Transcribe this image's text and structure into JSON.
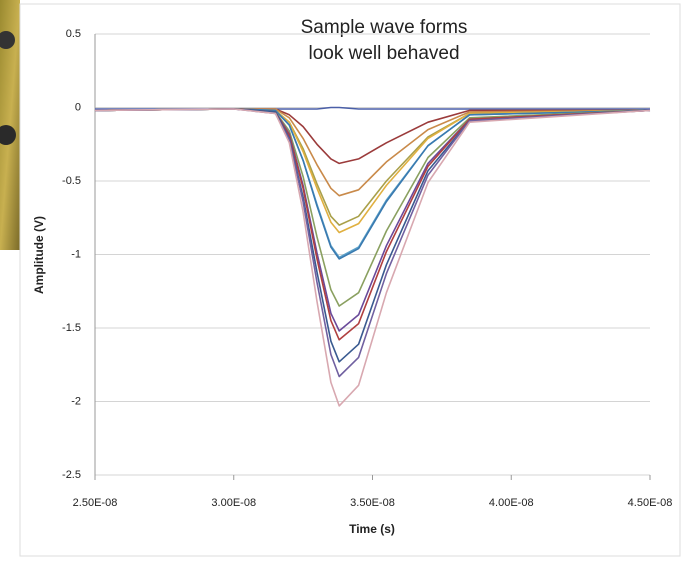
{
  "chart_data": {
    "type": "line",
    "title_lines": [
      "Sample wave forms",
      "look well behaved"
    ],
    "x_label": "Time (s)",
    "y_label": "Amplitude (V)",
    "x": [
      2.5e-08,
      3e-08,
      3.15e-08,
      3.2e-08,
      3.25e-08,
      3.3e-08,
      3.35e-08,
      3.38e-08,
      3.45e-08,
      3.55e-08,
      3.7e-08,
      3.85e-08,
      4.5e-08
    ],
    "xlim": [
      2.5e-08,
      4.5e-08
    ],
    "xticks": [
      {
        "value": 2.5e-08,
        "label": "2.50E-08"
      },
      {
        "value": 3e-08,
        "label": "3.00E-08"
      },
      {
        "value": 3.5e-08,
        "label": "3.50E-08"
      },
      {
        "value": 4e-08,
        "label": "4.00E-08"
      },
      {
        "value": 4.5e-08,
        "label": "4.50E-08"
      }
    ],
    "ylim": [
      -2.5,
      0.5
    ],
    "yticks": [
      0.5,
      0,
      -0.5,
      -1,
      -1.5,
      -2,
      -2.5
    ],
    "grid": true,
    "series": [
      {
        "color": "#4a5fa8",
        "values": [
          -0.01,
          -0.01,
          -0.01,
          -0.01,
          -0.01,
          -0.01,
          0,
          0,
          -0.01,
          -0.01,
          -0.01,
          -0.01,
          -0.01
        ]
      },
      {
        "color": "#9b3b3b",
        "values": [
          -0.02,
          -0.01,
          -0.01,
          -0.05,
          -0.13,
          -0.25,
          -0.35,
          -0.38,
          -0.35,
          -0.24,
          -0.1,
          -0.02,
          -0.02
        ]
      },
      {
        "color": "#c98a4a",
        "values": [
          -0.02,
          -0.01,
          -0.01,
          -0.07,
          -0.21,
          -0.39,
          -0.55,
          -0.6,
          -0.56,
          -0.37,
          -0.15,
          -0.03,
          -0.02
        ]
      },
      {
        "color": "#a9a04a",
        "values": [
          -0.02,
          -0.01,
          -0.02,
          -0.1,
          -0.28,
          -0.52,
          -0.74,
          -0.8,
          -0.74,
          -0.5,
          -0.2,
          -0.04,
          -0.02
        ]
      },
      {
        "color": "#e0b040",
        "values": [
          -0.02,
          -0.01,
          -0.02,
          -0.1,
          -0.3,
          -0.55,
          -0.78,
          -0.85,
          -0.79,
          -0.53,
          -0.21,
          -0.04,
          -0.02
        ]
      },
      {
        "color": "#5aa0c8",
        "values": [
          -0.02,
          -0.01,
          -0.02,
          -0.12,
          -0.36,
          -0.66,
          -0.94,
          -1.02,
          -0.95,
          -0.63,
          -0.26,
          -0.05,
          -0.02
        ]
      },
      {
        "color": "#3a7ab0",
        "values": [
          -0.02,
          -0.01,
          -0.02,
          -0.12,
          -0.36,
          -0.67,
          -0.95,
          -1.03,
          -0.96,
          -0.64,
          -0.26,
          -0.05,
          -0.02
        ]
      },
      {
        "color": "#8aa060",
        "values": [
          -0.02,
          -0.01,
          -0.03,
          -0.16,
          -0.47,
          -0.88,
          -1.24,
          -1.35,
          -1.26,
          -0.84,
          -0.34,
          -0.07,
          -0.02
        ]
      },
      {
        "color": "#6a4a9a",
        "values": [
          -0.02,
          -0.01,
          -0.03,
          -0.18,
          -0.53,
          -0.99,
          -1.4,
          -1.52,
          -1.41,
          -0.94,
          -0.38,
          -0.08,
          -0.02
        ]
      },
      {
        "color": "#b04040",
        "values": [
          -0.02,
          -0.01,
          -0.03,
          -0.19,
          -0.55,
          -1.03,
          -1.45,
          -1.58,
          -1.47,
          -0.98,
          -0.4,
          -0.08,
          -0.02
        ]
      },
      {
        "color": "#3a5a90",
        "values": [
          -0.02,
          -0.01,
          -0.03,
          -0.21,
          -0.61,
          -1.12,
          -1.59,
          -1.73,
          -1.61,
          -1.07,
          -0.43,
          -0.09,
          -0.02
        ]
      },
      {
        "color": "#7060a0",
        "values": [
          -0.02,
          -0.01,
          -0.04,
          -0.22,
          -0.64,
          -1.19,
          -1.68,
          -1.83,
          -1.7,
          -1.13,
          -0.46,
          -0.09,
          -0.02
        ]
      },
      {
        "color": "#d8a8b0",
        "values": [
          -0.02,
          -0.01,
          -0.04,
          -0.24,
          -0.71,
          -1.32,
          -1.87,
          -2.03,
          -1.89,
          -1.26,
          -0.51,
          -0.1,
          -0.02
        ]
      }
    ]
  }
}
